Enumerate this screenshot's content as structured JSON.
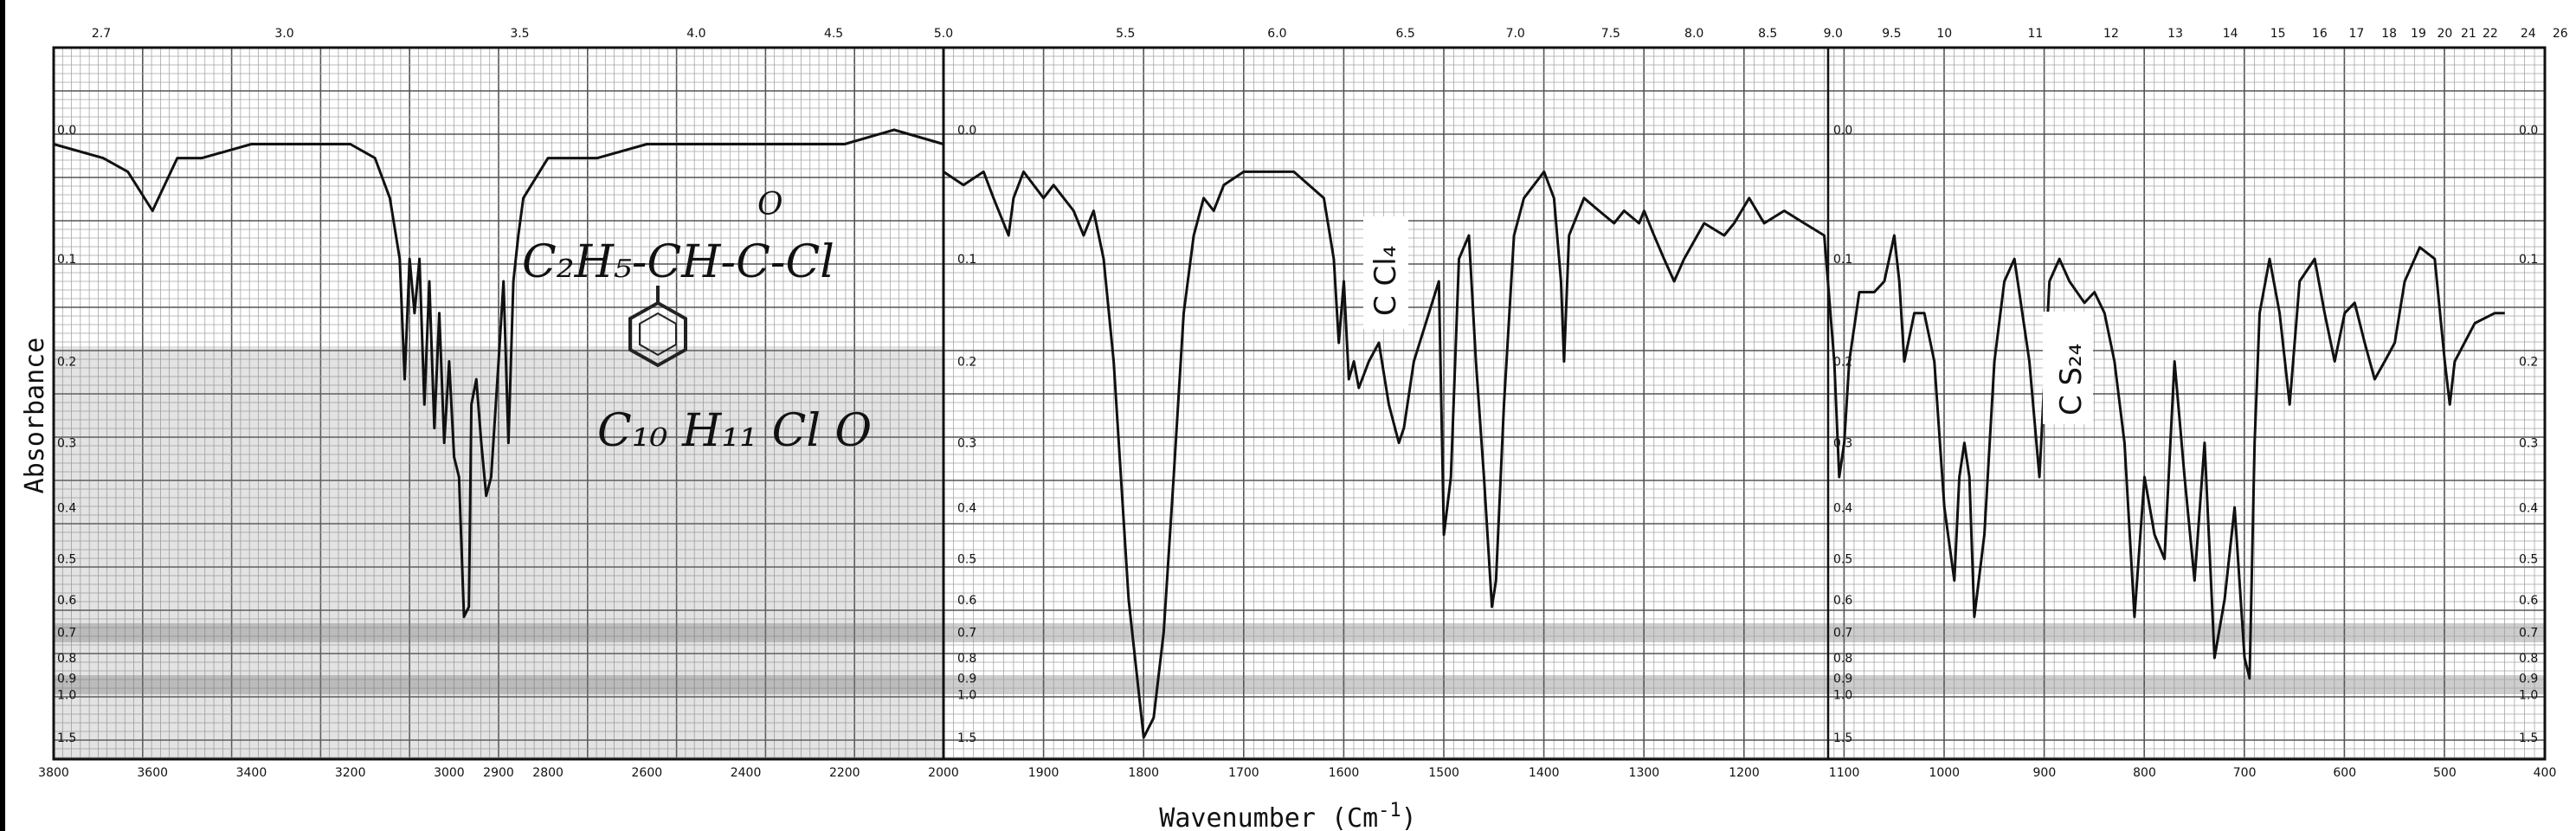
{
  "chart_data": {
    "type": "line",
    "title": "",
    "xlabel_text": "Wavenumber (Cm",
    "xlabel_sup": "-1",
    "xlabel_close": ")",
    "ylabel": "Absorbance",
    "x_ticks_left": [
      "3800",
      "3600",
      "3400",
      "3200",
      "3000",
      "2900",
      "2800",
      "2600",
      "2400",
      "2200",
      "2000"
    ],
    "x_ticks_right": [
      "1900",
      "1800",
      "1700",
      "1600",
      "1500",
      "1400",
      "1300",
      "1200",
      "1100",
      "1000",
      "900",
      "800",
      "700",
      "600",
      "500",
      "400"
    ],
    "micron_ticks": [
      "2.7",
      "3.0",
      "3.5",
      "4.0",
      "4.5",
      "5.0",
      "5.5",
      "6.0",
      "6.5",
      "7.0",
      "7.5",
      "8.0",
      "8.5",
      "9.0",
      "9.5",
      "10",
      "11",
      "12",
      "13",
      "14",
      "15",
      "16",
      "17",
      "18",
      "19",
      "20",
      "21",
      "22",
      "24",
      "26"
    ],
    "absorbance_ticks": [
      "0.0",
      "0.1",
      "0.2",
      "0.3",
      "0.4",
      "0.5",
      "0.6",
      "0.7",
      "0.8",
      "0.9",
      "1.0",
      "1.5"
    ],
    "annotations": {
      "formula_line1": "C₂H₅-CH-C-Cl",
      "formula_oxygen": "O",
      "formula_line2": "C₁₀ H₁₁ Cl O",
      "solvent_1": "C Cl₄",
      "solvent_2": "C S₂₄"
    },
    "series": [
      {
        "points_left": [
          [
            3800,
            0.01
          ],
          [
            3700,
            0.02
          ],
          [
            3650,
            0.03
          ],
          [
            3600,
            0.06
          ],
          [
            3550,
            0.02
          ],
          [
            3500,
            0.02
          ],
          [
            3400,
            0.01
          ],
          [
            3300,
            0.01
          ],
          [
            3200,
            0.01
          ],
          [
            3150,
            0.02
          ],
          [
            3120,
            0.05
          ],
          [
            3100,
            0.1
          ],
          [
            3090,
            0.22
          ],
          [
            3080,
            0.1
          ],
          [
            3070,
            0.15
          ],
          [
            3060,
            0.1
          ],
          [
            3050,
            0.25
          ],
          [
            3040,
            0.12
          ],
          [
            3030,
            0.28
          ],
          [
            3020,
            0.15
          ],
          [
            3010,
            0.3
          ],
          [
            3000,
            0.2
          ],
          [
            2990,
            0.32
          ],
          [
            2980,
            0.35
          ],
          [
            2970,
            0.65
          ],
          [
            2960,
            0.62
          ],
          [
            2955,
            0.25
          ],
          [
            2945,
            0.22
          ],
          [
            2935,
            0.3
          ],
          [
            2925,
            0.38
          ],
          [
            2915,
            0.35
          ],
          [
            2900,
            0.2
          ],
          [
            2890,
            0.12
          ],
          [
            2880,
            0.3
          ],
          [
            2870,
            0.12
          ],
          [
            2860,
            0.08
          ],
          [
            2850,
            0.05
          ],
          [
            2800,
            0.02
          ],
          [
            2700,
            0.02
          ],
          [
            2600,
            0.01
          ],
          [
            2500,
            0.01
          ],
          [
            2400,
            0.01
          ],
          [
            2300,
            0.01
          ],
          [
            2200,
            0.01
          ],
          [
            2100,
            0.0
          ],
          [
            2000,
            0.01
          ]
        ],
        "points_right": [
          [
            2000,
            0.03
          ],
          [
            1980,
            0.04
          ],
          [
            1960,
            0.03
          ],
          [
            1950,
            0.05
          ],
          [
            1935,
            0.08
          ],
          [
            1930,
            0.05
          ],
          [
            1920,
            0.03
          ],
          [
            1900,
            0.05
          ],
          [
            1890,
            0.04
          ],
          [
            1870,
            0.06
          ],
          [
            1860,
            0.08
          ],
          [
            1850,
            0.06
          ],
          [
            1840,
            0.1
          ],
          [
            1830,
            0.2
          ],
          [
            1815,
            0.6
          ],
          [
            1800,
            1.5
          ],
          [
            1790,
            1.2
          ],
          [
            1780,
            0.7
          ],
          [
            1770,
            0.35
          ],
          [
            1760,
            0.15
          ],
          [
            1750,
            0.08
          ],
          [
            1740,
            0.05
          ],
          [
            1730,
            0.06
          ],
          [
            1720,
            0.04
          ],
          [
            1700,
            0.03
          ],
          [
            1680,
            0.03
          ],
          [
            1650,
            0.03
          ],
          [
            1620,
            0.05
          ],
          [
            1610,
            0.1
          ],
          [
            1605,
            0.18
          ],
          [
            1600,
            0.12
          ],
          [
            1595,
            0.22
          ],
          [
            1590,
            0.2
          ],
          [
            1585,
            0.23
          ],
          [
            1575,
            0.2
          ],
          [
            1565,
            0.18
          ],
          [
            1555,
            0.25
          ],
          [
            1545,
            0.3
          ],
          [
            1540,
            0.28
          ],
          [
            1530,
            0.2
          ],
          [
            1515,
            0.15
          ],
          [
            1505,
            0.12
          ],
          [
            1500,
            0.45
          ],
          [
            1493,
            0.35
          ],
          [
            1485,
            0.1
          ],
          [
            1475,
            0.08
          ],
          [
            1468,
            0.2
          ],
          [
            1460,
            0.35
          ],
          [
            1452,
            0.62
          ],
          [
            1448,
            0.55
          ],
          [
            1440,
            0.25
          ],
          [
            1430,
            0.08
          ],
          [
            1420,
            0.05
          ],
          [
            1400,
            0.03
          ],
          [
            1390,
            0.05
          ],
          [
            1383,
            0.12
          ],
          [
            1380,
            0.2
          ],
          [
            1375,
            0.08
          ],
          [
            1360,
            0.05
          ],
          [
            1345,
            0.06
          ],
          [
            1330,
            0.07
          ],
          [
            1320,
            0.06
          ],
          [
            1305,
            0.07
          ],
          [
            1300,
            0.06
          ],
          [
            1290,
            0.08
          ],
          [
            1280,
            0.1
          ],
          [
            1270,
            0.12
          ],
          [
            1260,
            0.1
          ],
          [
            1240,
            0.07
          ],
          [
            1220,
            0.08
          ],
          [
            1210,
            0.07
          ],
          [
            1195,
            0.05
          ],
          [
            1180,
            0.07
          ],
          [
            1160,
            0.06
          ],
          [
            1140,
            0.07
          ],
          [
            1120,
            0.08
          ],
          [
            1110,
            0.2
          ],
          [
            1105,
            0.35
          ],
          [
            1100,
            0.3
          ],
          [
            1095,
            0.2
          ],
          [
            1085,
            0.13
          ],
          [
            1070,
            0.13
          ],
          [
            1060,
            0.12
          ],
          [
            1050,
            0.08
          ],
          [
            1045,
            0.12
          ],
          [
            1040,
            0.2
          ],
          [
            1030,
            0.15
          ],
          [
            1020,
            0.15
          ],
          [
            1010,
            0.2
          ],
          [
            1000,
            0.4
          ],
          [
            990,
            0.55
          ],
          [
            985,
            0.35
          ],
          [
            980,
            0.3
          ],
          [
            975,
            0.35
          ],
          [
            970,
            0.65
          ],
          [
            960,
            0.45
          ],
          [
            950,
            0.2
          ],
          [
            940,
            0.12
          ],
          [
            930,
            0.1
          ],
          [
            915,
            0.2
          ],
          [
            905,
            0.35
          ],
          [
            895,
            0.12
          ],
          [
            885,
            0.1
          ],
          [
            875,
            0.12
          ],
          [
            860,
            0.14
          ],
          [
            850,
            0.13
          ],
          [
            840,
            0.15
          ],
          [
            830,
            0.2
          ],
          [
            820,
            0.3
          ],
          [
            810,
            0.65
          ],
          [
            800,
            0.35
          ],
          [
            790,
            0.45
          ],
          [
            780,
            0.5
          ],
          [
            770,
            0.2
          ],
          [
            760,
            0.35
          ],
          [
            750,
            0.55
          ],
          [
            740,
            0.3
          ],
          [
            730,
            0.8
          ],
          [
            720,
            0.6
          ],
          [
            710,
            0.4
          ],
          [
            700,
            0.8
          ],
          [
            695,
            0.9
          ],
          [
            690,
            0.3
          ],
          [
            685,
            0.15
          ],
          [
            675,
            0.1
          ],
          [
            665,
            0.15
          ],
          [
            655,
            0.25
          ],
          [
            645,
            0.12
          ],
          [
            630,
            0.1
          ],
          [
            620,
            0.15
          ],
          [
            610,
            0.2
          ],
          [
            600,
            0.15
          ],
          [
            590,
            0.14
          ],
          [
            580,
            0.18
          ],
          [
            570,
            0.22
          ],
          [
            560,
            0.2
          ],
          [
            550,
            0.18
          ],
          [
            540,
            0.12
          ],
          [
            525,
            0.09
          ],
          [
            510,
            0.1
          ],
          [
            500,
            0.2
          ],
          [
            495,
            0.25
          ],
          [
            490,
            0.2
          ],
          [
            470,
            0.16
          ],
          [
            450,
            0.15
          ],
          [
            440,
            0.15
          ]
        ]
      }
    ]
  }
}
